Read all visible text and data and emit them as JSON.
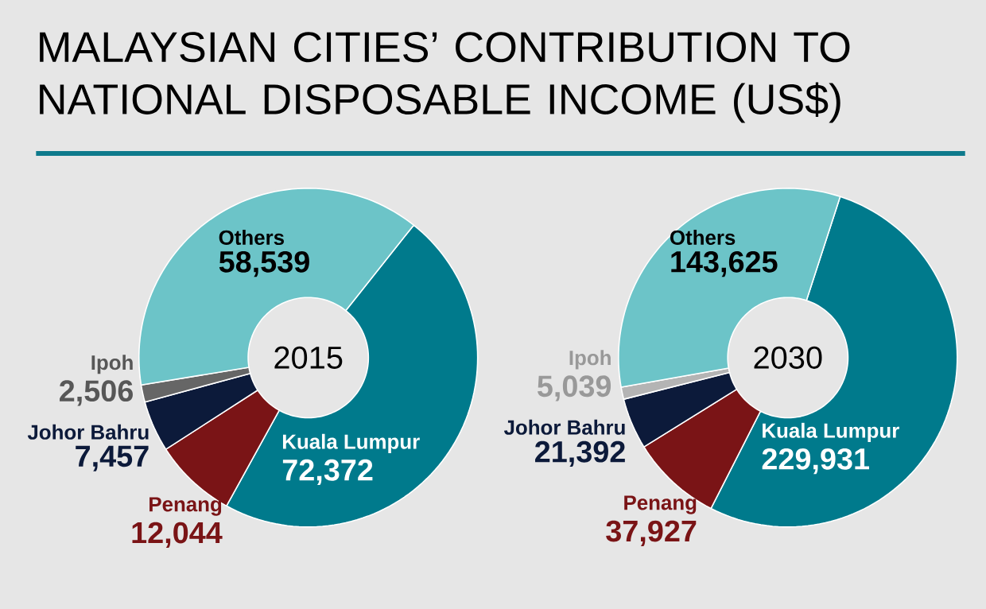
{
  "chart_data": [
    {
      "type": "donut",
      "title": "MALAYSIAN CITIES’ CONTRIBUTION TO NATIONAL DISPOSABLE INCOME (US$)",
      "subtitle": "2015",
      "categories": [
        "Kuala Lumpur",
        "Penang",
        "Johor Bahru",
        "Ipoh",
        "Others"
      ],
      "values": [
        72372,
        12044,
        7457,
        2506,
        58539
      ],
      "value_labels": [
        "72,372",
        "12,044",
        "7,457",
        "2,506",
        "58,539"
      ],
      "colors": [
        "#007a8c",
        "#7a1416",
        "#0c1a3a",
        "#666666",
        "#6cc4c8"
      ]
    },
    {
      "type": "donut",
      "subtitle": "2030",
      "categories": [
        "Kuala Lumpur",
        "Penang",
        "Johor Bahru",
        "Ipoh",
        "Others"
      ],
      "values": [
        229931,
        37927,
        21392,
        5039,
        143625
      ],
      "value_labels": [
        "229,931",
        "37,927",
        "21,392",
        "5,039",
        "143,625"
      ],
      "colors": [
        "#007a8c",
        "#7a1416",
        "#0c1a3a",
        "#b4b4b4",
        "#6cc4c8"
      ]
    }
  ]
}
